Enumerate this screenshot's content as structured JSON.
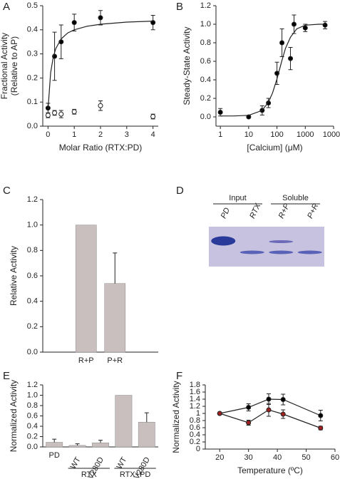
{
  "chart_data": [
    {
      "type": "scatter",
      "panel": "A",
      "ylabel": [
        "Fractional Activity",
        "(Relative to AP)"
      ],
      "xlabel": "Molar Ratio (RTX:PD)",
      "xlim": [
        -0.2,
        4.2
      ],
      "xticks": [
        0,
        1,
        2,
        3,
        4
      ],
      "ylim": [
        0,
        0.5
      ],
      "yticks": [
        {
          "value": 0,
          "label": "0.0"
        },
        0.1,
        0.2,
        0.3,
        0.4,
        0.5
      ],
      "series": [
        {
          "marker": "filled",
          "color": "#000000",
          "line": false,
          "x": [
            0,
            0.25,
            0.5,
            1,
            2,
            4
          ],
          "values": [
            0.075,
            0.29,
            0.35,
            0.43,
            0.45,
            0.43
          ],
          "errors": [
            0.02,
            0.1,
            0.07,
            0.035,
            0.03,
            0.03
          ]
        },
        {
          "marker": "open",
          "color": "#000000",
          "line": false,
          "x": [
            0,
            0.25,
            0.5,
            1,
            2,
            4
          ],
          "values": [
            0.045,
            0.055,
            0.05,
            0.06,
            0.085,
            0.04
          ],
          "errors": [
            0.01,
            0.01,
            0.015,
            0.01,
            0.02,
            0.01
          ]
        },
        {
          "marker": "none",
          "color": "#000000",
          "line": true,
          "x": [
            0,
            0.1,
            0.2,
            0.3,
            0.5,
            0.75,
            1,
            1.5,
            2,
            3,
            4
          ],
          "values": [
            0.07,
            0.222,
            0.287,
            0.323,
            0.362,
            0.387,
            0.4,
            0.415,
            0.423,
            0.432,
            0.436
          ]
        }
      ]
    },
    {
      "type": "scatter",
      "panel": "B",
      "ylabel": [
        "Steady-State Activity"
      ],
      "xlabel": "[Calcium] (μM)",
      "xlog": true,
      "xlim": [
        0.7,
        10000
      ],
      "xticks": [
        1,
        10,
        100,
        1000,
        10000
      ],
      "ylim": [
        -0.1,
        1.2
      ],
      "yticks": [
        {
          "value": 0,
          "label": "0.0"
        },
        0.2,
        0.4,
        0.6,
        0.8,
        {
          "value": 1,
          "label": "1.0"
        },
        1.2
      ],
      "series": [
        {
          "marker": "filled",
          "color": "#000000",
          "line": false,
          "x": [
            1,
            10,
            30,
            50,
            100,
            150,
            300,
            400,
            1000,
            5000
          ],
          "values": [
            0.05,
            0.0,
            0.07,
            0.15,
            0.47,
            0.8,
            0.63,
            1.0,
            0.96,
            0.99
          ],
          "errors": [
            0.04,
            0.01,
            0.05,
            0.05,
            0.12,
            0.15,
            0.12,
            0.1,
            0.04,
            0.04
          ]
        },
        {
          "marker": "none",
          "color": "#000000",
          "line": true,
          "x": [
            1,
            3,
            10,
            30,
            50,
            70,
            100,
            150,
            200,
            300,
            500,
            1000,
            3000,
            5000
          ],
          "values": [
            0.01,
            0.01,
            0.017,
            0.07,
            0.16,
            0.26,
            0.41,
            0.61,
            0.74,
            0.86,
            0.95,
            0.99,
            1.0,
            1.0
          ]
        }
      ]
    },
    {
      "type": "bar",
      "panel": "C",
      "ylabel": [
        "Relative Activity"
      ],
      "color": "#c9bfbf",
      "categories": [
        "R+P",
        "P+R"
      ],
      "values": [
        1.0,
        0.54
      ],
      "errors": [
        null,
        0.24
      ],
      "ylim": [
        0,
        1.2
      ],
      "yticks": [
        {
          "value": 0,
          "label": "0.0"
        },
        0.2,
        0.4,
        0.6,
        0.8,
        {
          "value": 1,
          "label": "1.0"
        },
        1.2
      ]
    },
    {
      "type": "gel",
      "panel": "D",
      "groups": [
        "Input",
        "Soluble"
      ],
      "lanes": [
        "PD",
        "RTX",
        "R+P",
        "P+R"
      ]
    },
    {
      "type": "bar",
      "panel": "E",
      "ylabel": [
        "Normalized Activity"
      ],
      "color": "#c9bfbf",
      "categories": [
        "PD",
        "WT",
        "V280D",
        "WT",
        "V280D"
      ],
      "values": [
        0.09,
        0.03,
        0.08,
        1.0,
        0.48
      ],
      "errors": [
        0.06,
        0.03,
        0.05,
        null,
        0.18
      ],
      "groups": [
        {
          "label": "RTX",
          "members": [
            1,
            2
          ]
        },
        {
          "label": "RTX+PD",
          "members": [
            3,
            4
          ]
        }
      ],
      "ylim": [
        0,
        1.2
      ],
      "yticks": [
        {
          "value": 0,
          "label": "0.0"
        },
        0.2,
        0.4,
        0.6,
        0.8,
        {
          "value": 1,
          "label": "1.0"
        },
        1.2
      ]
    },
    {
      "type": "scatter",
      "panel": "F",
      "ylabel": [
        "Normalized Activity"
      ],
      "xlabel": "Temperature (ºC)",
      "xlim": [
        15,
        60
      ],
      "xticks": [
        20,
        30,
        40,
        50,
        60
      ],
      "ylim": [
        0,
        1.8
      ],
      "yticks": [
        0,
        0.2,
        0.4,
        0.6,
        0.8,
        1,
        1.2,
        1.4,
        1.6,
        1.8
      ],
      "series": [
        {
          "marker": "filled",
          "color": "#000000",
          "line": true,
          "x": [
            20,
            30,
            37,
            42,
            55
          ],
          "values": [
            1.0,
            1.17,
            1.4,
            1.39,
            0.94
          ],
          "errors": [
            0,
            0.1,
            0.15,
            0.15,
            0.15
          ]
        },
        {
          "marker": "filled",
          "color": "#a02020",
          "line": true,
          "x": [
            20,
            30,
            37,
            42,
            55
          ],
          "values": [
            1.0,
            0.74,
            1.1,
            0.98,
            0.59
          ],
          "errors": [
            0,
            0.07,
            0.18,
            0.12,
            0.05
          ]
        }
      ]
    }
  ]
}
